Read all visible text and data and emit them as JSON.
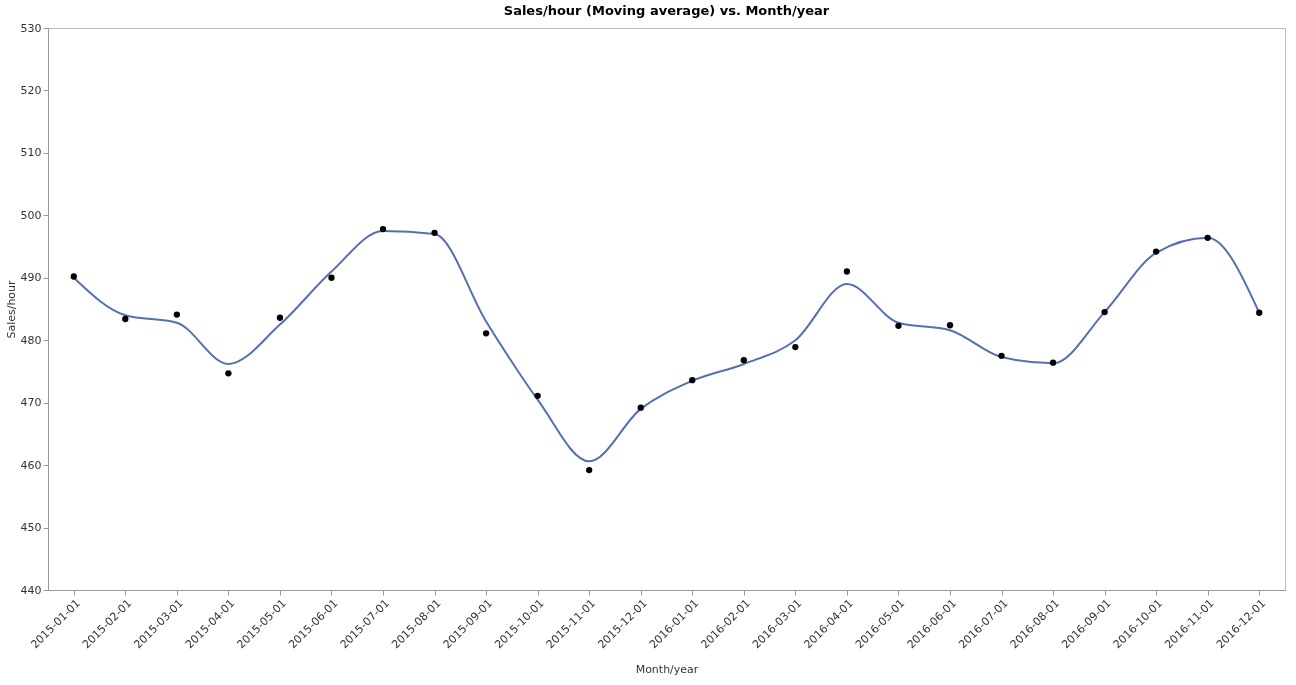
{
  "chart_data": {
    "type": "scatter",
    "title": "Sales/hour (Moving average) vs. Month/year",
    "xlabel": "Month/year",
    "ylabel": "Sales/hour",
    "categories": [
      "2015-01-01",
      "2015-02-01",
      "2015-03-01",
      "2015-04-01",
      "2015-05-01",
      "2015-06-01",
      "2015-07-01",
      "2015-08-01",
      "2015-09-01",
      "2015-10-01",
      "2015-11-01",
      "2015-12-01",
      "2016-01-01",
      "2016-02-01",
      "2016-03-01",
      "2016-04-01",
      "2016-05-01",
      "2016-06-01",
      "2016-07-01",
      "2016-08-01",
      "2016-09-01",
      "2016-10-01",
      "2016-11-01",
      "2016-12-01"
    ],
    "series": [
      {
        "marker": "circle",
        "color": "#000000",
        "values": [
          490.2,
          483.4,
          484.1,
          474.7,
          483.6,
          490.0,
          497.8,
          497.2,
          481.1,
          471.1,
          459.2,
          469.2,
          473.6,
          476.8,
          478.9,
          491.0,
          482.3,
          482.4,
          477.5,
          476.4,
          484.5,
          494.2,
          496.4,
          484.4
        ]
      },
      {
        "type": "line",
        "marker": "none",
        "line_style": "solid",
        "color": "#5470b0",
        "values": [
          490.0,
          484.0,
          482.8,
          476.2,
          482.5,
          491.0,
          497.5,
          497.0,
          483.0,
          470.5,
          460.6,
          469.0,
          473.5,
          476.2,
          480.0,
          489.0,
          482.8,
          481.6,
          477.3,
          476.3,
          484.5,
          494.0,
          496.4,
          484.4
        ]
      }
    ],
    "ylim": [
      440,
      530
    ],
    "yticks": [
      440,
      450,
      460,
      470,
      480,
      490,
      500,
      510,
      520,
      530
    ],
    "grid": false
  }
}
